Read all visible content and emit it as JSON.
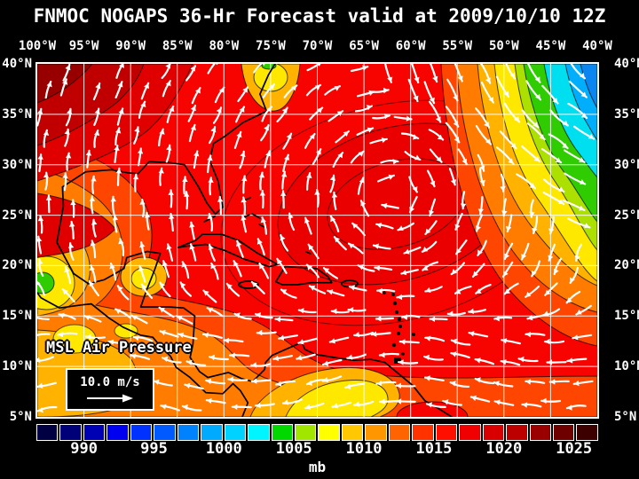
{
  "title": "FNMOC NOGAPS 36-Hr Forecast valid at 2009/10/10 12Z",
  "axes": {
    "top": [
      "100°W",
      "95°W",
      "90°W",
      "85°W",
      "80°W",
      "75°W",
      "70°W",
      "65°W",
      "60°W",
      "55°W",
      "50°W",
      "45°W",
      "40°W"
    ],
    "left": [
      "40°N",
      "35°N",
      "30°N",
      "25°N",
      "20°N",
      "15°N",
      "10°N",
      "5°N"
    ],
    "right": [
      "40°N",
      "35°N",
      "30°N",
      "25°N",
      "20°N",
      "15°N",
      "10°N",
      "5°N"
    ]
  },
  "map": {
    "overlay_label": "MSL Air Pressure",
    "wind_legend_label": "10.0 m/s"
  },
  "colorbar": {
    "unit": "mb",
    "ticks": [
      "990",
      "995",
      "1000",
      "1005",
      "1010",
      "1015",
      "1020",
      "1025"
    ],
    "colors": [
      "#000042",
      "#000078",
      "#0000b4",
      "#0000f0",
      "#0032ff",
      "#005aff",
      "#0082ff",
      "#00aaff",
      "#00d2ff",
      "#00f5ff",
      "#00d800",
      "#a0e600",
      "#ffff00",
      "#ffc800",
      "#ff9600",
      "#ff6400",
      "#ff3200",
      "#ff0f00",
      "#f00000",
      "#d80000",
      "#bc0000",
      "#9a0000",
      "#6e0000",
      "#3c0000"
    ]
  },
  "palette": {
    "map_base_red": "#f70400",
    "darker_red_core": "#eb0000",
    "nw_dark_red_1": "#e00000",
    "nw_dark_red_2": "#c00000",
    "nw_dark_red_3": "#980000",
    "orange_red": "#ff4600",
    "orange": "#ff7c00",
    "amber": "#ffb300",
    "yellow": "#ffe800",
    "yellow_green": "#abe000",
    "green": "#2ecc00",
    "cyan": "#00dff0",
    "light_blue": "#00aefb",
    "blue": "#0b86f0",
    "grid": "#ffffff",
    "coastline": "#000000",
    "wind_arrows": "#ffffff"
  }
}
